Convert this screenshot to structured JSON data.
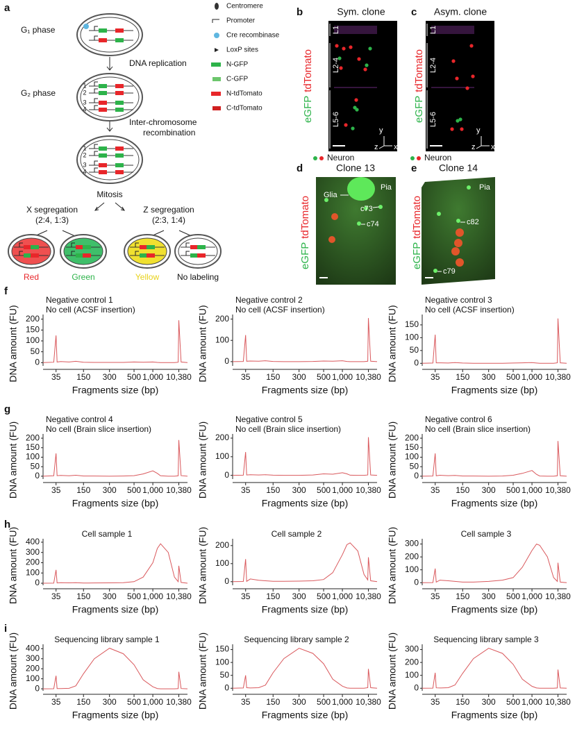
{
  "panel_a": {
    "label": "a",
    "g1": "G₁ phase",
    "replication": "DNA replication",
    "g2": "G₂ phase",
    "recombination": [
      "Inter-chromosome",
      "recombination"
    ],
    "mitosis": "Mitosis",
    "x_segregation": [
      "X segregation",
      "(2:4, 1:3)"
    ],
    "z_segregation": [
      "Z segregation",
      "(2:3, 1:4)"
    ],
    "outcomes": [
      "Red",
      "Green",
      "Yellow",
      "No labeling"
    ],
    "chromosomes": [
      "1",
      "2",
      "3",
      "4"
    ],
    "legend": [
      "Centromere",
      "Promoter",
      "Cre recombinase",
      "LoxP sites",
      "N-GFP",
      "C-GFP",
      "N-tdTomato",
      "C-tdTomato"
    ]
  },
  "panel_b": {
    "label": "b",
    "title": "Sym. clone",
    "layers": [
      "L1",
      "L2-4",
      "L5-6"
    ],
    "channels": [
      "eGFP",
      "tdTomato"
    ],
    "legend": "Neuron",
    "axes": [
      "y",
      "z",
      "x"
    ]
  },
  "panel_c": {
    "label": "c",
    "title": "Asym. clone",
    "layers": [
      "L1",
      "L2-4",
      "L5-6"
    ],
    "channels": [
      "eGFP",
      "tdTomato"
    ],
    "legend": "Neuron",
    "axes": [
      "y",
      "z",
      "x"
    ]
  },
  "panel_d": {
    "label": "d",
    "title": "Clone 13",
    "channels": [
      "eGFP",
      "tdTomato"
    ],
    "annotations": [
      "Pia",
      "Glia",
      "c73",
      "c74"
    ]
  },
  "panel_e": {
    "label": "e",
    "title": "Clone 14",
    "channels": [
      "eGFP",
      "tdTomato"
    ],
    "annotations": [
      "Pia",
      "c82",
      "c79"
    ]
  },
  "row_labels": [
    "f",
    "g",
    "h",
    "i"
  ],
  "chart_data": [
    {
      "type": "line",
      "title": [
        "Negative control 1",
        "No cell (ACSF insertion)"
      ],
      "x_label": "Fragments size (bp)",
      "y_label": "DNA amount (FU)",
      "color": "#d9585c",
      "x": [
        25,
        33,
        35,
        37,
        45,
        70,
        100,
        150,
        200,
        300,
        400,
        500,
        700,
        1000,
        1500,
        2000,
        4000,
        7000,
        9800,
        10380,
        10900,
        12500
      ],
      "values": [
        0,
        2,
        125,
        3,
        5,
        3,
        6,
        2,
        1,
        1,
        1,
        3,
        2,
        3,
        1,
        0,
        0,
        0,
        2,
        195,
        3,
        0
      ],
      "xlim": [
        25,
        12500
      ],
      "xticks": [
        35,
        150,
        300,
        500,
        {
          "value": 1000,
          "label": "1,000"
        },
        {
          "value": 10380,
          "label": "10,380"
        }
      ],
      "ylim": [
        -15,
        215
      ],
      "yticks": [
        0,
        50,
        100,
        150,
        200
      ]
    },
    {
      "type": "line",
      "title": [
        "Negative control 2",
        "No cell (ACSF insertion)"
      ],
      "x_label": "Fragments size (bp)",
      "y_label": "DNA amount (FU)",
      "color": "#d9585c",
      "x": [
        25,
        33,
        35,
        37,
        45,
        70,
        100,
        150,
        200,
        300,
        400,
        500,
        700,
        1000,
        1500,
        2000,
        4000,
        7000,
        9800,
        10380,
        10900,
        12500
      ],
      "values": [
        0,
        1,
        125,
        2,
        3,
        2,
        4,
        1,
        0,
        0,
        1,
        3,
        2,
        4,
        1,
        0,
        0,
        0,
        2,
        205,
        2,
        0
      ],
      "xlim": [
        25,
        12500
      ],
      "xticks": [
        35,
        150,
        300,
        500,
        {
          "value": 1000,
          "label": "1,000"
        },
        {
          "value": 10380,
          "label": "10,380"
        }
      ],
      "ylim": [
        -20,
        215
      ],
      "yticks": [
        0,
        100,
        200
      ]
    },
    {
      "type": "line",
      "title": [
        "Negative control 3",
        "No cell (ACSF insertion)"
      ],
      "x_label": "Fragments size (bp)",
      "y_label": "DNA amount (FU)",
      "color": "#d9585c",
      "x": [
        25,
        33,
        35,
        37,
        45,
        70,
        100,
        150,
        200,
        300,
        400,
        500,
        700,
        1000,
        1500,
        2000,
        4000,
        7000,
        9800,
        10380,
        10900,
        12500
      ],
      "values": [
        0,
        1,
        112,
        2,
        2,
        1,
        3,
        1,
        0,
        0,
        0,
        1,
        2,
        3,
        1,
        0,
        0,
        0,
        2,
        175,
        2,
        0
      ],
      "xlim": [
        25,
        12500
      ],
      "xticks": [
        35,
        150,
        300,
        500,
        {
          "value": 1000,
          "label": "1,000"
        },
        {
          "value": 10380,
          "label": "10,380"
        }
      ],
      "ylim": [
        -10,
        185
      ],
      "yticks": [
        0,
        50,
        100,
        150
      ]
    },
    {
      "type": "line",
      "title": [
        "Negative control 4",
        "No cell (Brain slice insertion)"
      ],
      "x_label": "Fragments size (bp)",
      "y_label": "DNA amount (FU)",
      "color": "#d9585c",
      "x": [
        25,
        33,
        35,
        37,
        45,
        70,
        100,
        150,
        200,
        300,
        400,
        500,
        700,
        1000,
        1500,
        2000,
        4000,
        7000,
        9800,
        10380,
        10900,
        12500
      ],
      "values": [
        0,
        2,
        120,
        3,
        4,
        2,
        5,
        1,
        1,
        0,
        1,
        3,
        12,
        28,
        15,
        2,
        0,
        0,
        2,
        190,
        3,
        0
      ],
      "xlim": [
        25,
        12500
      ],
      "xticks": [
        35,
        150,
        300,
        500,
        {
          "value": 1000,
          "label": "1,000"
        },
        {
          "value": 10380,
          "label": "10,380"
        }
      ],
      "ylim": [
        -15,
        215
      ],
      "yticks": [
        0,
        50,
        100,
        150,
        200
      ]
    },
    {
      "type": "line",
      "title": [
        "Negative control 5",
        "No cell (Brain slice insertion)"
      ],
      "x_label": "Fragments size (bp)",
      "y_label": "DNA amount (FU)",
      "color": "#d9585c",
      "x": [
        25,
        33,
        35,
        37,
        45,
        70,
        100,
        150,
        200,
        300,
        400,
        500,
        700,
        1000,
        1500,
        2000,
        4000,
        7000,
        9800,
        10380,
        10900,
        12500
      ],
      "values": [
        0,
        1,
        125,
        2,
        3,
        2,
        3,
        1,
        0,
        0,
        2,
        8,
        6,
        14,
        8,
        1,
        0,
        0,
        2,
        205,
        2,
        0
      ],
      "xlim": [
        25,
        12500
      ],
      "xticks": [
        35,
        150,
        300,
        500,
        {
          "value": 1000,
          "label": "1,000"
        },
        {
          "value": 10380,
          "label": "10,380"
        }
      ],
      "ylim": [
        -20,
        215
      ],
      "yticks": [
        0,
        100,
        200
      ]
    },
    {
      "type": "line",
      "title": [
        "Negative control 6",
        "No cell (Brain slice insertion)"
      ],
      "x_label": "Fragments size (bp)",
      "y_label": "DNA amount (FU)",
      "color": "#d9585c",
      "x": [
        25,
        33,
        35,
        37,
        45,
        70,
        100,
        150,
        200,
        300,
        400,
        500,
        700,
        1000,
        1500,
        2000,
        4000,
        7000,
        9800,
        10380,
        10900,
        12500
      ],
      "values": [
        0,
        1,
        120,
        2,
        5,
        3,
        4,
        1,
        1,
        0,
        1,
        5,
        15,
        30,
        10,
        1,
        0,
        0,
        2,
        185,
        2,
        0
      ],
      "xlim": [
        25,
        12500
      ],
      "xticks": [
        35,
        150,
        300,
        500,
        {
          "value": 1000,
          "label": "1,000"
        },
        {
          "value": 10380,
          "label": "10,380"
        }
      ],
      "ylim": [
        -15,
        215
      ],
      "yticks": [
        0,
        50,
        100,
        150,
        200
      ]
    },
    {
      "type": "line",
      "title": [
        "Cell sample 1"
      ],
      "x_label": "Fragments size (bp)",
      "y_label": "DNA amount (FU)",
      "color": "#d9585c",
      "x": [
        25,
        33,
        35,
        37,
        45,
        70,
        100,
        150,
        200,
        300,
        400,
        500,
        700,
        1000,
        1500,
        2000,
        4000,
        7000,
        9800,
        10380,
        10900,
        12500
      ],
      "values": [
        0,
        1,
        130,
        3,
        5,
        4,
        5,
        2,
        3,
        4,
        6,
        15,
        60,
        200,
        340,
        385,
        300,
        60,
        15,
        170,
        8,
        0
      ],
      "xlim": [
        25,
        12500
      ],
      "xticks": [
        35,
        150,
        300,
        500,
        {
          "value": 1000,
          "label": "1,000"
        },
        {
          "value": 10380,
          "label": "10,380"
        }
      ],
      "ylim": [
        -20,
        420
      ],
      "yticks": [
        0,
        100,
        200,
        300,
        400
      ]
    },
    {
      "type": "line",
      "title": [
        "Cell sample 2"
      ],
      "x_label": "Fragments size (bp)",
      "y_label": "DNA amount (FU)",
      "color": "#d9585c",
      "x": [
        25,
        33,
        35,
        37,
        45,
        70,
        100,
        150,
        200,
        300,
        400,
        500,
        700,
        1000,
        1500,
        2000,
        4000,
        7000,
        9800,
        10380,
        10900,
        12500
      ],
      "values": [
        0,
        1,
        125,
        2,
        15,
        8,
        5,
        2,
        2,
        3,
        5,
        12,
        50,
        150,
        205,
        215,
        170,
        40,
        10,
        135,
        5,
        0
      ],
      "xlim": [
        25,
        12500
      ],
      "xticks": [
        35,
        150,
        300,
        500,
        {
          "value": 1000,
          "label": "1,000"
        },
        {
          "value": 10380,
          "label": "10,380"
        }
      ],
      "ylim": [
        -20,
        230
      ],
      "yticks": [
        0,
        100,
        200
      ]
    },
    {
      "type": "line",
      "title": [
        "Cell sample 3"
      ],
      "x_label": "Fragments size (bp)",
      "y_label": "DNA amount (FU)",
      "color": "#d9585c",
      "x": [
        25,
        33,
        35,
        37,
        45,
        70,
        100,
        150,
        200,
        300,
        400,
        500,
        700,
        1000,
        1500,
        2000,
        4000,
        7000,
        9800,
        10380,
        10900,
        12500
      ],
      "values": [
        0,
        1,
        110,
        5,
        20,
        15,
        10,
        5,
        5,
        10,
        20,
        40,
        120,
        250,
        300,
        290,
        200,
        40,
        10,
        155,
        5,
        0
      ],
      "xlim": [
        25,
        12500
      ],
      "xticks": [
        35,
        150,
        300,
        500,
        {
          "value": 1000,
          "label": "1,000"
        },
        {
          "value": 10380,
          "label": "10,380"
        }
      ],
      "ylim": [
        -20,
        330
      ],
      "yticks": [
        0,
        100,
        200,
        300
      ]
    },
    {
      "type": "line",
      "title": [
        "Sequencing library sample 1"
      ],
      "x_label": "Fragments size (bp)",
      "y_label": "DNA amount (FU)",
      "color": "#d9585c",
      "x": [
        25,
        33,
        35,
        37,
        45,
        70,
        100,
        150,
        200,
        300,
        400,
        500,
        700,
        1000,
        1500,
        2000,
        4000,
        7000,
        9800,
        10380,
        10900,
        12500
      ],
      "values": [
        0,
        1,
        130,
        3,
        2,
        5,
        30,
        150,
        300,
        405,
        350,
        240,
        90,
        20,
        3,
        0,
        0,
        0,
        2,
        170,
        3,
        0
      ],
      "xlim": [
        25,
        12500
      ],
      "xticks": [
        35,
        150,
        300,
        500,
        {
          "value": 1000,
          "label": "1,000"
        },
        {
          "value": 10380,
          "label": "10,380"
        }
      ],
      "ylim": [
        -20,
        430
      ],
      "yticks": [
        0,
        100,
        200,
        300,
        400
      ]
    },
    {
      "type": "line",
      "title": [
        "Sequencing library sample 2"
      ],
      "x_label": "Fragments size (bp)",
      "y_label": "DNA amount (FU)",
      "color": "#d9585c",
      "x": [
        25,
        33,
        35,
        37,
        45,
        70,
        100,
        150,
        200,
        300,
        400,
        500,
        700,
        1000,
        1500,
        2000,
        4000,
        7000,
        9800,
        10380,
        10900,
        12500
      ],
      "values": [
        0,
        1,
        50,
        2,
        1,
        2,
        12,
        60,
        115,
        155,
        135,
        95,
        35,
        8,
        1,
        0,
        0,
        0,
        2,
        75,
        2,
        0
      ],
      "xlim": [
        25,
        12500
      ],
      "xticks": [
        35,
        150,
        300,
        500,
        {
          "value": 1000,
          "label": "1,000"
        },
        {
          "value": 10380,
          "label": "10,380"
        }
      ],
      "ylim": [
        -10,
        165
      ],
      "yticks": [
        0,
        50,
        100,
        150
      ]
    },
    {
      "type": "line",
      "title": [
        "Sequencing library sample 3"
      ],
      "x_label": "Fragments size (bp)",
      "y_label": "DNA amount (FU)",
      "color": "#d9585c",
      "x": [
        25,
        33,
        35,
        37,
        45,
        70,
        100,
        150,
        200,
        300,
        400,
        500,
        700,
        1000,
        1500,
        2000,
        4000,
        7000,
        9800,
        10380,
        10900,
        12500
      ],
      "values": [
        0,
        1,
        120,
        3,
        2,
        4,
        25,
        115,
        230,
        310,
        270,
        185,
        70,
        15,
        2,
        0,
        0,
        0,
        2,
        145,
        2,
        0
      ],
      "xlim": [
        25,
        12500
      ],
      "xticks": [
        35,
        150,
        300,
        500,
        {
          "value": 1000,
          "label": "1,000"
        },
        {
          "value": 10380,
          "label": "10,380"
        }
      ],
      "ylim": [
        -20,
        330
      ],
      "yticks": [
        0,
        100,
        200,
        300
      ]
    }
  ]
}
